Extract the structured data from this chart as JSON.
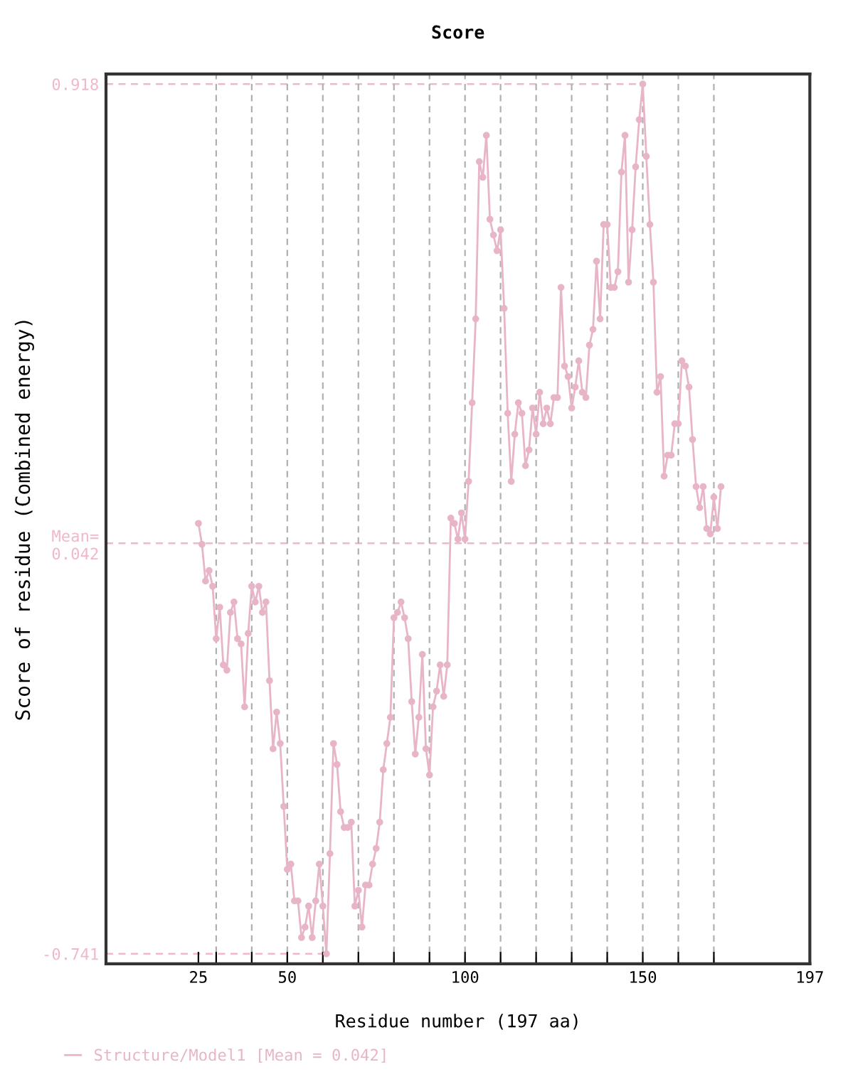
{
  "chart_data": {
    "type": "line",
    "title": "Score",
    "xlabel": "Residue number (197 aa)",
    "ylabel": "Score of residue (Combined energy)",
    "x": [
      25,
      26,
      27,
      28,
      29,
      30,
      31,
      32,
      33,
      34,
      35,
      36,
      37,
      38,
      39,
      40,
      41,
      42,
      43,
      44,
      45,
      46,
      47,
      48,
      49,
      50,
      51,
      52,
      53,
      54,
      55,
      56,
      57,
      58,
      59,
      60,
      61,
      62,
      63,
      64,
      65,
      66,
      67,
      68,
      69,
      70,
      71,
      72,
      73,
      74,
      75,
      76,
      77,
      78,
      79,
      80,
      81,
      82,
      83,
      84,
      85,
      86,
      87,
      88,
      89,
      90,
      91,
      92,
      93,
      94,
      95,
      96,
      97,
      98,
      99,
      100,
      101,
      102,
      103,
      104,
      105,
      106,
      107,
      108,
      109,
      110,
      111,
      112,
      113,
      114,
      115,
      116,
      117,
      118,
      119,
      120,
      121,
      122,
      123,
      124,
      125,
      126,
      127,
      128,
      129,
      130,
      131,
      132,
      133,
      134,
      135,
      136,
      137,
      138,
      139,
      140,
      141,
      142,
      143,
      144,
      145,
      146,
      147,
      148,
      149,
      150,
      151,
      152,
      153,
      154,
      155,
      156,
      157,
      158,
      159,
      160,
      161,
      162,
      163,
      164,
      165,
      166,
      167,
      168,
      169,
      170,
      171,
      172
    ],
    "series": [
      {
        "name": "Structure/Model1 [Mean = 0.042]",
        "color": "#e8b4c8",
        "values": [
          0.08,
          0.04,
          -0.03,
          -0.01,
          -0.04,
          -0.14,
          -0.08,
          -0.19,
          -0.2,
          -0.09,
          -0.07,
          -0.14,
          -0.15,
          -0.27,
          -0.13,
          -0.04,
          -0.07,
          -0.04,
          -0.09,
          -0.07,
          -0.22,
          -0.35,
          -0.28,
          -0.34,
          -0.46,
          -0.58,
          -0.57,
          -0.64,
          -0.64,
          -0.71,
          -0.69,
          -0.65,
          -0.71,
          -0.64,
          -0.57,
          -0.65,
          -0.741,
          -0.55,
          -0.34,
          -0.38,
          -0.47,
          -0.5,
          -0.5,
          -0.49,
          -0.65,
          -0.62,
          -0.69,
          -0.61,
          -0.61,
          -0.57,
          -0.54,
          -0.49,
          -0.39,
          -0.34,
          -0.29,
          -0.1,
          -0.09,
          -0.07,
          -0.1,
          -0.14,
          -0.26,
          -0.36,
          -0.29,
          -0.17,
          -0.35,
          -0.4,
          -0.27,
          -0.24,
          -0.19,
          -0.25,
          -0.19,
          0.09,
          0.08,
          0.05,
          0.1,
          0.05,
          0.16,
          0.31,
          0.47,
          0.77,
          0.74,
          0.82,
          0.66,
          0.63,
          0.6,
          0.64,
          0.49,
          0.29,
          0.16,
          0.25,
          0.31,
          0.29,
          0.19,
          0.22,
          0.3,
          0.25,
          0.33,
          0.27,
          0.3,
          0.27,
          0.32,
          0.32,
          0.53,
          0.38,
          0.36,
          0.3,
          0.34,
          0.39,
          0.33,
          0.32,
          0.42,
          0.45,
          0.58,
          0.47,
          0.65,
          0.65,
          0.53,
          0.53,
          0.56,
          0.75,
          0.82,
          0.54,
          0.64,
          0.76,
          0.85,
          0.918,
          0.78,
          0.65,
          0.54,
          0.33,
          0.36,
          0.17,
          0.21,
          0.21,
          0.27,
          0.27,
          0.39,
          0.38,
          0.34,
          0.24,
          0.15,
          0.11,
          0.15,
          0.07,
          0.06,
          0.13,
          0.07,
          0.15
        ]
      }
    ],
    "xlim": [
      -1,
      197
    ],
    "xticks": [
      25,
      {
        "value": 30,
        "label": null
      },
      {
        "value": 40,
        "label": null
      },
      50,
      {
        "value": 60,
        "label": null
      },
      {
        "value": 70,
        "label": null
      },
      {
        "value": 80,
        "label": null
      },
      {
        "value": 90,
        "label": null
      },
      100,
      {
        "value": 110,
        "label": null
      },
      {
        "value": 120,
        "label": null
      },
      {
        "value": 130,
        "label": null
      },
      {
        "value": 140,
        "label": null
      },
      150,
      {
        "value": 160,
        "label": null
      },
      {
        "value": 170,
        "label": null
      },
      197
    ],
    "ylim": [
      -0.76,
      0.937
    ],
    "yticks": [
      -0.741,
      {
        "value": 0.042,
        "label": "Mean=\n0.042"
      },
      0.918
    ],
    "ref_lines": [
      {
        "axis": "y",
        "value": 0.918,
        "color": "#f0b8c8",
        "line_style": "dashed"
      },
      {
        "axis": "y",
        "value": 0.042,
        "color": "#f0b8c8",
        "line_style": "dashed"
      },
      {
        "axis": "y",
        "value": -0.741,
        "color": "#f0b8c8",
        "line_style": "dashed"
      },
      {
        "axis": "x",
        "value": 30,
        "color": "#b0b0b0",
        "line_style": "dashed"
      },
      {
        "axis": "x",
        "value": 40,
        "color": "#b0b0b0",
        "line_style": "dashed"
      },
      {
        "axis": "x",
        "value": 50,
        "color": "#b0b0b0",
        "line_style": "dashed"
      },
      {
        "axis": "x",
        "value": 60,
        "color": "#b0b0b0",
        "line_style": "dashed"
      },
      {
        "axis": "x",
        "value": 70,
        "color": "#b0b0b0",
        "line_style": "dashed"
      },
      {
        "axis": "x",
        "value": 80,
        "color": "#b0b0b0",
        "line_style": "dashed"
      },
      {
        "axis": "x",
        "value": 90,
        "color": "#b0b0b0",
        "line_style": "dashed"
      },
      {
        "axis": "x",
        "value": 100,
        "color": "#b0b0b0",
        "line_style": "dashed"
      },
      {
        "axis": "x",
        "value": 110,
        "color": "#b0b0b0",
        "line_style": "dashed"
      },
      {
        "axis": "x",
        "value": 120,
        "color": "#b0b0b0",
        "line_style": "dashed"
      },
      {
        "axis": "x",
        "value": 130,
        "color": "#b0b0b0",
        "line_style": "dashed"
      },
      {
        "axis": "x",
        "value": 140,
        "color": "#b0b0b0",
        "line_style": "dashed"
      },
      {
        "axis": "x",
        "value": 150,
        "color": "#b0b0b0",
        "line_style": "dashed"
      },
      {
        "axis": "x",
        "value": 160,
        "color": "#b0b0b0",
        "line_style": "dashed"
      },
      {
        "axis": "x",
        "value": 170,
        "color": "#b0b0b0",
        "line_style": "dashed"
      }
    ],
    "marker": "circle",
    "line_style": "solid",
    "grid": false,
    "legend": "bottom left"
  }
}
